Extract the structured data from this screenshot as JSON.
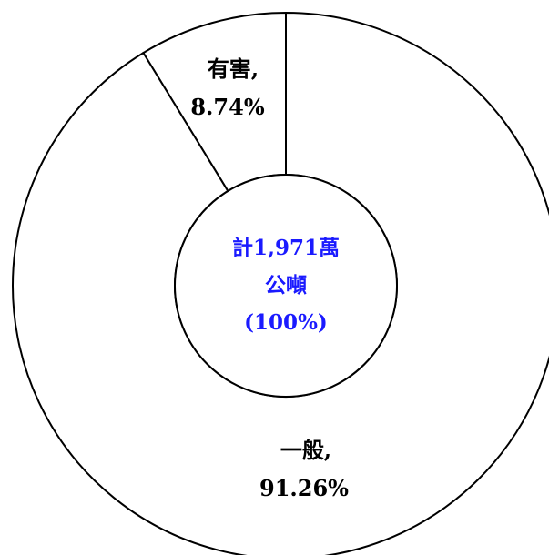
{
  "chart_data": {
    "type": "pie",
    "style": "donut",
    "categories": [
      "有害",
      "一般"
    ],
    "values": [
      8.74,
      91.26
    ],
    "unit": "%",
    "slices": [
      {
        "name": "有害",
        "label_line1": "有害,",
        "label_line2": "8.74%",
        "value": 8.74
      },
      {
        "name": "一般",
        "label_line1": "一般,",
        "label_line2": "91.26%",
        "value": 91.26
      }
    ],
    "center_text": [
      "計1,971萬",
      "公噸",
      "(100%)"
    ],
    "colors": {
      "fill": "#ffffff",
      "stroke": "#000000",
      "center_text": "#1a1aff"
    }
  }
}
